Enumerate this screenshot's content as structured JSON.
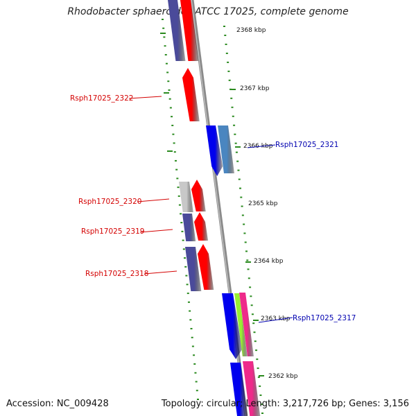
{
  "header": {
    "title": "Rhodobacter sphaeroides ATCC 17025, complete genome"
  },
  "footer": {
    "accession": "Accession: NC_009428",
    "topology": "Topology: circular; Length: 3,217,726 bp; Genes: 3,156"
  },
  "colors": {
    "backbone": "#8a8a8a",
    "tick": "#2a8a1e",
    "red_gene": "#ff0000",
    "blue_gene": "#0000ee",
    "purple_gene": "#4a4a9a",
    "steel_blue_gene": "#4a86c0",
    "grey_gene": "#c8c8c8",
    "pink_gene": "#ee2a8a",
    "lime_gene": "#99ee33",
    "red_label": "#d40000",
    "blue_label": "#0000b0"
  },
  "scale_labels": [
    "2368 kbp",
    "2367 kbp",
    "2366 kbp",
    "2365 kbp",
    "2364 kbp",
    "2363 kbp",
    "2362 kbp"
  ],
  "gene_labels": [
    {
      "name": "Rsph17025_2322",
      "color": "red_label"
    },
    {
      "name": "Rsph17025_2321",
      "color": "blue_label"
    },
    {
      "name": "Rsph17025_2320",
      "color": "red_label"
    },
    {
      "name": "Rsph17025_2319",
      "color": "red_label"
    },
    {
      "name": "Rsph17025_2318",
      "color": "red_label"
    },
    {
      "name": "Rsph17025_2317",
      "color": "blue_label"
    }
  ]
}
